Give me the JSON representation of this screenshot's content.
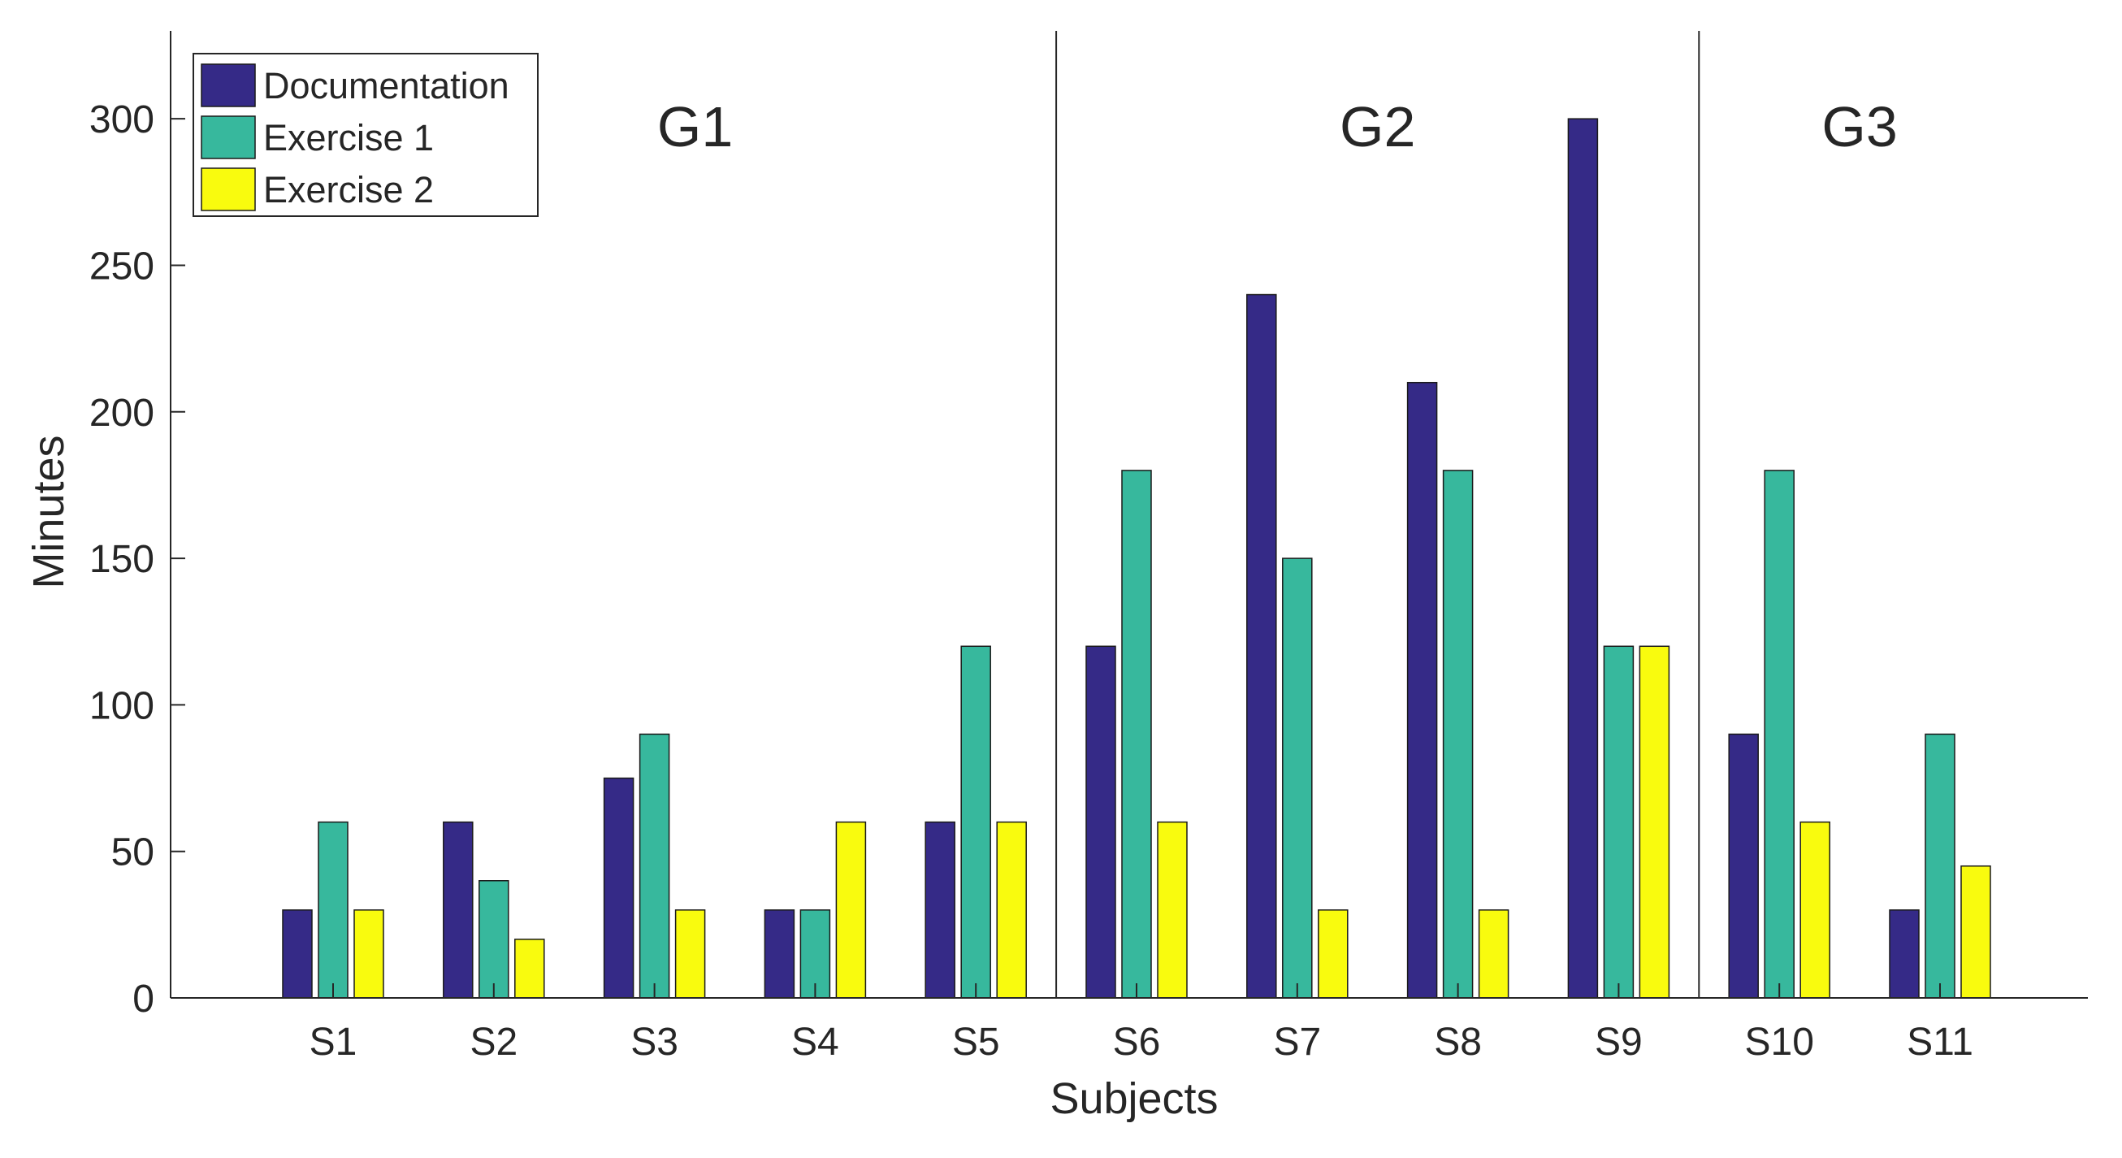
{
  "chart_data": {
    "type": "bar",
    "title": "",
    "xlabel": "Subjects",
    "ylabel": "Minutes",
    "ylim": [
      0,
      330
    ],
    "yticks": [
      0,
      50,
      100,
      150,
      200,
      250,
      300
    ],
    "grid": false,
    "legend_position": "top-left",
    "categories": [
      "S1",
      "S2",
      "S3",
      "S4",
      "S5",
      "S6",
      "S7",
      "S8",
      "S9",
      "S10",
      "S11"
    ],
    "series": [
      {
        "name": "Documentation",
        "color": "#352a87",
        "values": [
          30,
          60,
          75,
          30,
          60,
          120,
          240,
          210,
          300,
          90,
          30
        ]
      },
      {
        "name": "Exercise 1",
        "color": "#37b89d",
        "values": [
          60,
          40,
          90,
          30,
          120,
          180,
          150,
          180,
          120,
          180,
          90
        ]
      },
      {
        "name": "Exercise 2",
        "color": "#f9fb0e",
        "values": [
          30,
          20,
          30,
          60,
          60,
          60,
          30,
          30,
          120,
          60,
          45
        ]
      }
    ],
    "groups": [
      {
        "label": "G1",
        "from": "S1",
        "to": "S5"
      },
      {
        "label": "G2",
        "from": "S6",
        "to": "S9"
      },
      {
        "label": "G3",
        "from": "S10",
        "to": "S11"
      }
    ]
  }
}
